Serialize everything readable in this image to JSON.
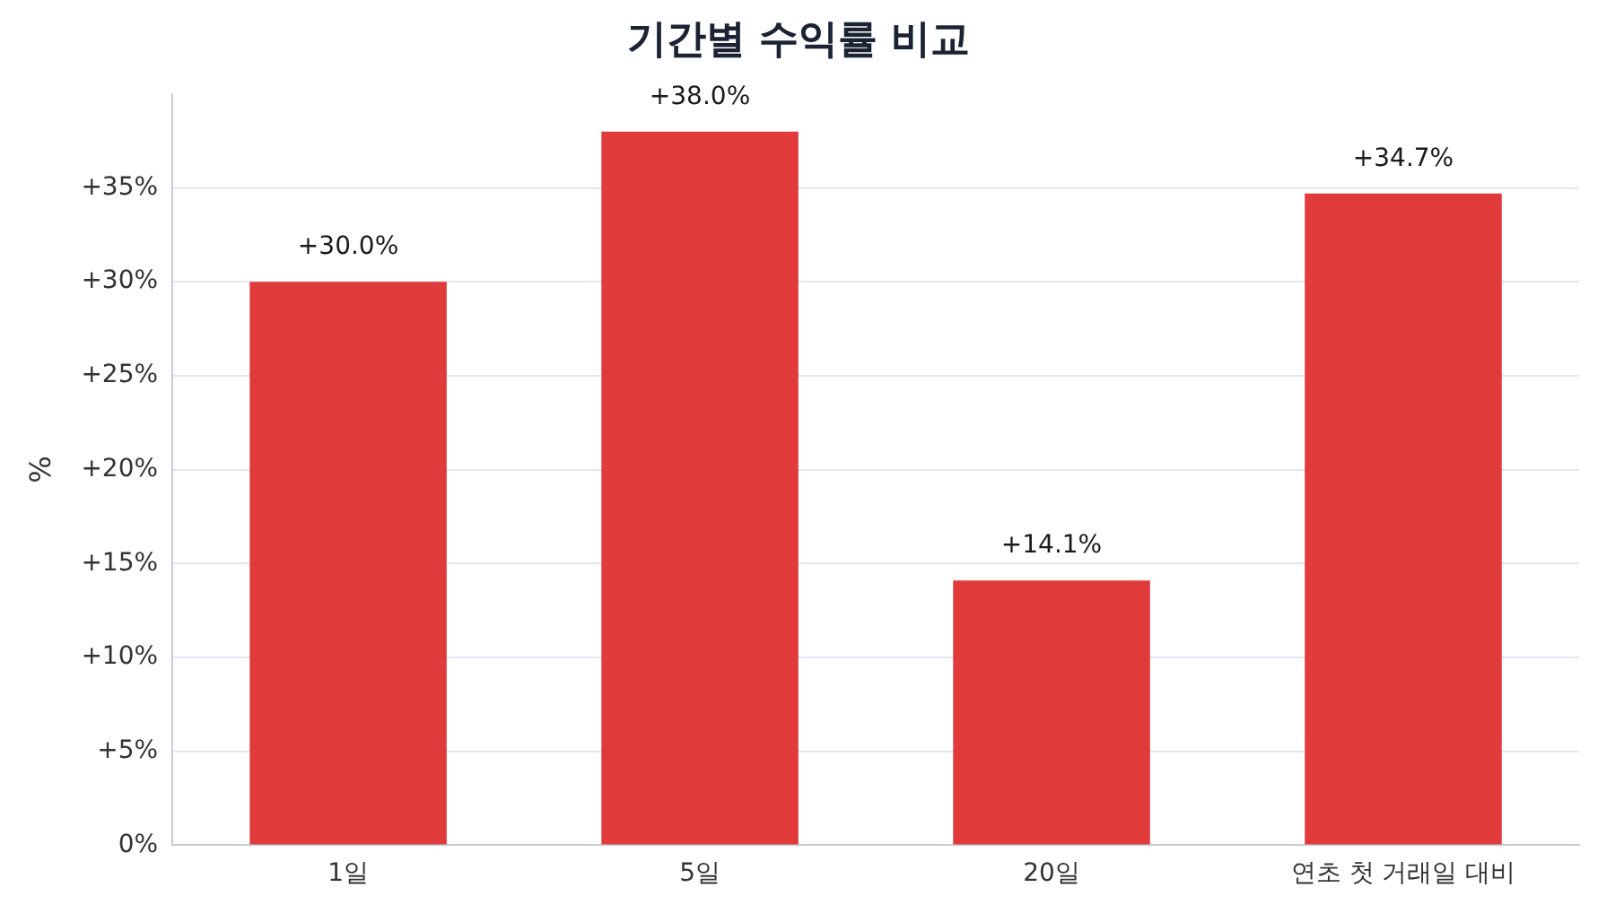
{
  "chart_data": {
    "type": "bar",
    "title": "기간별 수익률 비교",
    "ylabel": "%",
    "categories": [
      "1일",
      "5일",
      "20일",
      "연초 첫 거래일 대비"
    ],
    "values": [
      30.0,
      38.0,
      14.1,
      34.7
    ],
    "value_labels": [
      "+30.0%",
      "+38.0%",
      "+14.1%",
      "+34.7%"
    ],
    "color": "#e03a3a",
    "ylim": [
      0,
      40
    ],
    "yticks": [
      {
        "value": 0,
        "label": "0%"
      },
      {
        "value": 5,
        "label": "+5%"
      },
      {
        "value": 10,
        "label": "+10%"
      },
      {
        "value": 15,
        "label": "+15%"
      },
      {
        "value": 20,
        "label": "+20%"
      },
      {
        "value": 25,
        "label": "+25%"
      },
      {
        "value": 30,
        "label": "+30%"
      },
      {
        "value": 35,
        "label": "+35%"
      }
    ],
    "grid": "y",
    "legend": false
  }
}
